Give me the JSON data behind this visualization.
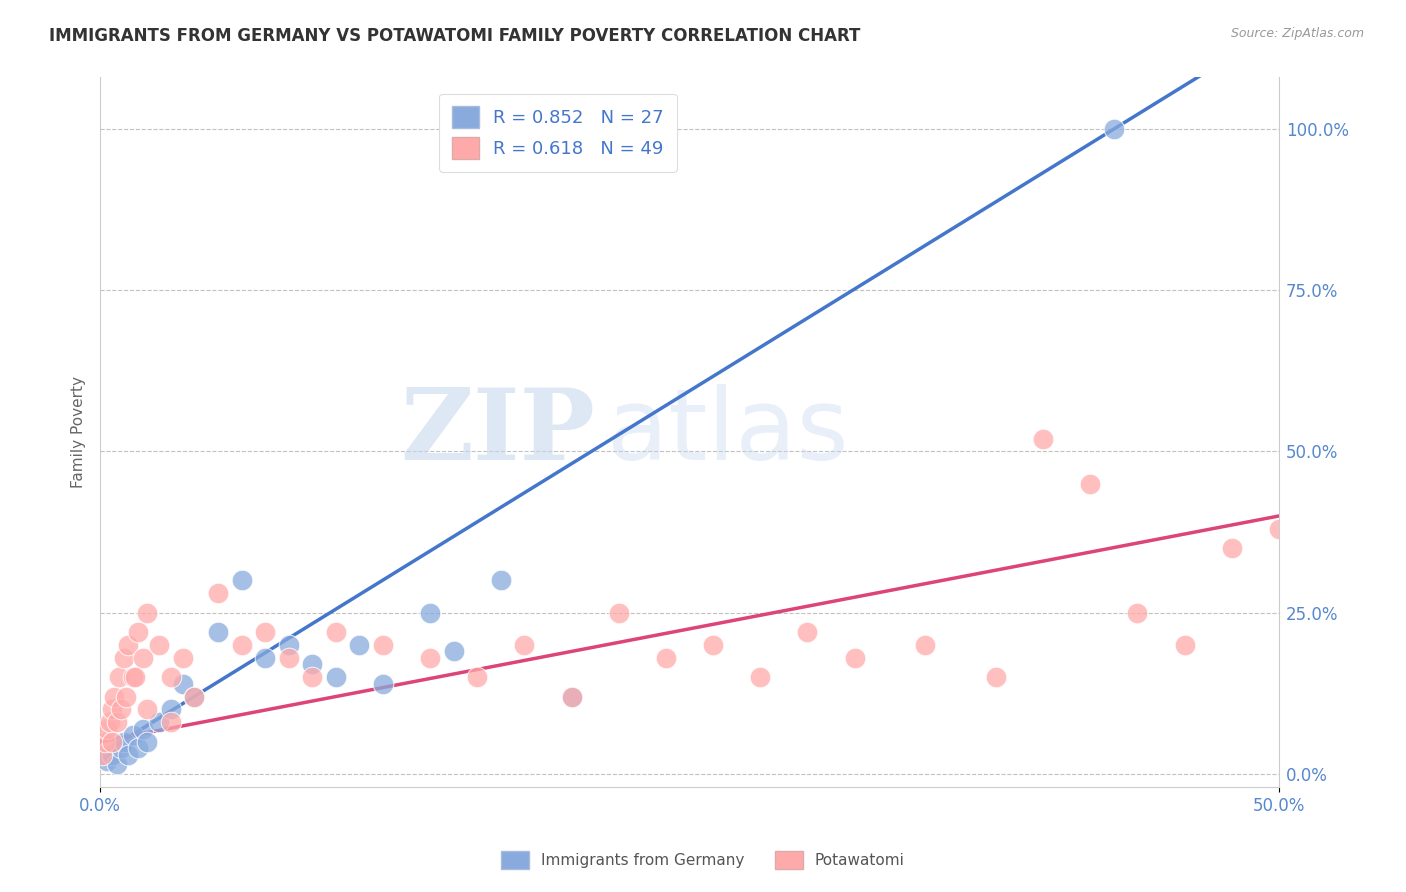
{
  "title": "IMMIGRANTS FROM GERMANY VS POTAWATOMI FAMILY POVERTY CORRELATION CHART",
  "source": "Source: ZipAtlas.com",
  "ylabel": "Family Poverty",
  "ytick_labels": [
    "0.0%",
    "25.0%",
    "50.0%",
    "75.0%",
    "100.0%"
  ],
  "ytick_values": [
    0.0,
    25.0,
    50.0,
    75.0,
    100.0
  ],
  "xrange": [
    0.0,
    50.0
  ],
  "yrange": [
    -2.0,
    108.0
  ],
  "blue_scatter_color": "#88AADD",
  "pink_scatter_color": "#FFAAAA",
  "blue_line_color": "#4477CC",
  "pink_line_color": "#DD4477",
  "legend_R_blue": "R = 0.852",
  "legend_N_blue": "N = 27",
  "legend_R_pink": "R = 0.618",
  "legend_N_pink": "N = 49",
  "watermark_zip": "ZIP",
  "watermark_atlas": "atlas",
  "title_color": "#333333",
  "title_fontsize": 12,
  "axis_label_color": "#666666",
  "tick_label_color": "#5588CC",
  "grid_color": "#BBBBBB",
  "background_color": "#FFFFFF",
  "blue_x": [
    0.3,
    0.5,
    0.7,
    0.9,
    1.0,
    1.2,
    1.4,
    1.6,
    1.8,
    2.0,
    2.5,
    3.0,
    3.5,
    4.0,
    5.0,
    6.0,
    7.0,
    8.0,
    9.0,
    10.0,
    11.0,
    12.0,
    14.0,
    15.0,
    17.0,
    20.0,
    43.0
  ],
  "blue_y": [
    2.0,
    3.0,
    1.5,
    4.0,
    5.0,
    3.0,
    6.0,
    4.0,
    7.0,
    5.0,
    8.0,
    10.0,
    14.0,
    12.0,
    22.0,
    30.0,
    18.0,
    20.0,
    17.0,
    15.0,
    20.0,
    14.0,
    25.0,
    19.0,
    30.0,
    12.0,
    100.0
  ],
  "pink_x": [
    0.1,
    0.2,
    0.3,
    0.4,
    0.5,
    0.6,
    0.7,
    0.8,
    0.9,
    1.0,
    1.1,
    1.2,
    1.4,
    1.6,
    1.8,
    2.0,
    2.5,
    3.0,
    3.5,
    4.0,
    5.0,
    6.0,
    7.0,
    8.0,
    9.0,
    10.0,
    12.0,
    14.0,
    16.0,
    18.0,
    20.0,
    22.0,
    24.0,
    26.0,
    28.0,
    30.0,
    32.0,
    35.0,
    38.0,
    40.0,
    42.0,
    44.0,
    46.0,
    48.0,
    50.0,
    0.5,
    1.5,
    2.0,
    3.0
  ],
  "pink_y": [
    3.0,
    5.0,
    7.0,
    8.0,
    10.0,
    12.0,
    8.0,
    15.0,
    10.0,
    18.0,
    12.0,
    20.0,
    15.0,
    22.0,
    18.0,
    25.0,
    20.0,
    15.0,
    18.0,
    12.0,
    28.0,
    20.0,
    22.0,
    18.0,
    15.0,
    22.0,
    20.0,
    18.0,
    15.0,
    20.0,
    12.0,
    25.0,
    18.0,
    20.0,
    15.0,
    22.0,
    18.0,
    20.0,
    15.0,
    52.0,
    45.0,
    25.0,
    20.0,
    35.0,
    38.0,
    5.0,
    15.0,
    10.0,
    8.0
  ]
}
